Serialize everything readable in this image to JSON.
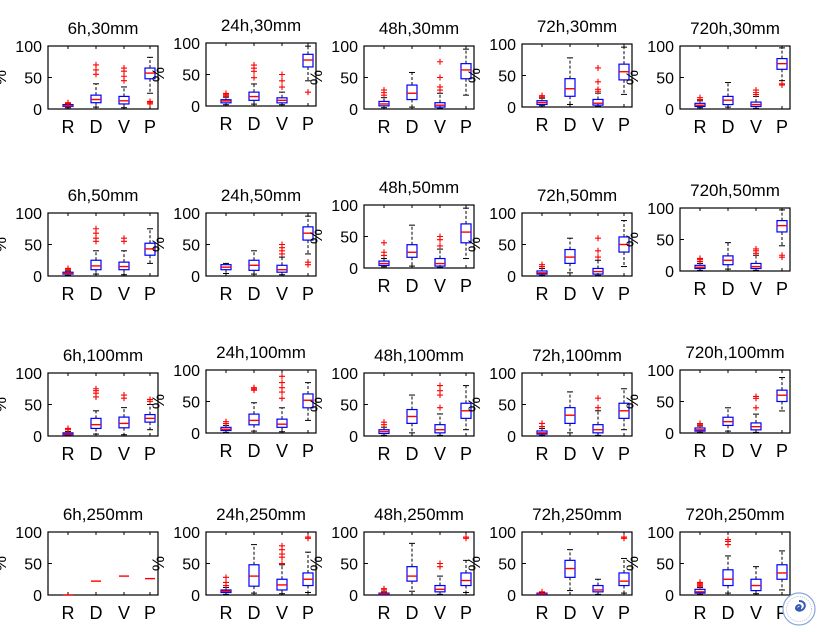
{
  "figure": {
    "rows": 4,
    "cols": 5,
    "ylabel": "%",
    "yticks": [
      "0",
      "50",
      "100"
    ],
    "xlabel_letters": [
      "R",
      "D",
      "V",
      "P"
    ],
    "colors": {
      "box": "#0000ff",
      "median": "#ff0000",
      "outlier": "#ff0000",
      "whisker": "#000000",
      "axis": "#000000"
    }
  },
  "chart_data": [
    {
      "title": "6h,30mm",
      "type": "box",
      "ylim": [
        0,
        100
      ],
      "categories": [
        "R",
        "D",
        "V",
        "P"
      ],
      "boxes": [
        {
          "q1": 4,
          "median": 5,
          "q3": 7,
          "wlo": 2,
          "whi": 8,
          "outliers": [
            9,
            10
          ]
        },
        {
          "q1": 10,
          "median": 15,
          "q3": 22,
          "wlo": 3,
          "whi": 40,
          "outliers": [
            55,
            62,
            70
          ]
        },
        {
          "q1": 8,
          "median": 13,
          "q3": 20,
          "wlo": 2,
          "whi": 35,
          "outliers": [
            45,
            52,
            60,
            65
          ]
        },
        {
          "q1": 48,
          "median": 57,
          "q3": 65,
          "wlo": 25,
          "whi": 82,
          "outliers": [
            8,
            10,
            12
          ]
        }
      ]
    },
    {
      "title": "24h,30mm",
      "type": "box",
      "ylim": [
        0,
        100
      ],
      "categories": [
        "R",
        "D",
        "V",
        "P"
      ],
      "boxes": [
        {
          "q1": 5,
          "median": 8,
          "q3": 10,
          "wlo": 2,
          "whi": 14,
          "outliers": [
            16,
            18,
            20
          ]
        },
        {
          "q1": 9,
          "median": 15,
          "q3": 22,
          "wlo": 3,
          "whi": 35,
          "outliers": [
            45,
            55,
            60,
            65
          ]
        },
        {
          "q1": 5,
          "median": 9,
          "q3": 13,
          "wlo": 2,
          "whi": 22,
          "outliers": [
            30,
            40,
            50
          ]
        },
        {
          "q1": 62,
          "median": 73,
          "q3": 82,
          "wlo": 40,
          "whi": 95,
          "outliers": [
            22
          ]
        }
      ]
    },
    {
      "title": "48h,30mm",
      "type": "box",
      "ylim": [
        0,
        100
      ],
      "categories": [
        "R",
        "D",
        "V",
        "P"
      ],
      "boxes": [
        {
          "q1": 5,
          "median": 8,
          "q3": 12,
          "wlo": 2,
          "whi": 18,
          "outliers": [
            22,
            26,
            30
          ]
        },
        {
          "q1": 15,
          "median": 25,
          "q3": 38,
          "wlo": 3,
          "whi": 58,
          "outliers": []
        },
        {
          "q1": 3,
          "median": 6,
          "q3": 10,
          "wlo": 1,
          "whi": 25,
          "outliers": [
            30,
            35,
            50,
            75
          ]
        },
        {
          "q1": 48,
          "median": 62,
          "q3": 72,
          "wlo": 22,
          "whi": 95,
          "outliers": []
        }
      ]
    },
    {
      "title": "72h,30mm",
      "type": "box",
      "ylim": [
        0,
        100
      ],
      "categories": [
        "R",
        "D",
        "V",
        "P"
      ],
      "boxes": [
        {
          "q1": 4,
          "median": 7,
          "q3": 10,
          "wlo": 2,
          "whi": 14,
          "outliers": [
            16,
            18
          ]
        },
        {
          "q1": 17,
          "median": 29,
          "q3": 45,
          "wlo": 4,
          "whi": 78,
          "outliers": []
        },
        {
          "q1": 3,
          "median": 6,
          "q3": 12,
          "wlo": 1,
          "whi": 22,
          "outliers": [
            25,
            28,
            40,
            62
          ]
        },
        {
          "q1": 43,
          "median": 56,
          "q3": 68,
          "wlo": 20,
          "whi": 95,
          "outliers": []
        }
      ]
    },
    {
      "title": "720h,30mm",
      "type": "box",
      "ylim": [
        0,
        100
      ],
      "categories": [
        "R",
        "D",
        "V",
        "P"
      ],
      "boxes": [
        {
          "q1": 4,
          "median": 6,
          "q3": 9,
          "wlo": 2,
          "whi": 13,
          "outliers": [
            15,
            18
          ]
        },
        {
          "q1": 7,
          "median": 14,
          "q3": 20,
          "wlo": 3,
          "whi": 42,
          "outliers": []
        },
        {
          "q1": 4,
          "median": 7,
          "q3": 11,
          "wlo": 1,
          "whi": 20,
          "outliers": [
            23,
            26,
            30
          ]
        },
        {
          "q1": 63,
          "median": 72,
          "q3": 80,
          "wlo": 45,
          "whi": 97,
          "outliers": [
            40,
            38
          ]
        }
      ]
    },
    {
      "title": "6h,50mm",
      "type": "box",
      "ylim": [
        0,
        100
      ],
      "categories": [
        "R",
        "D",
        "V",
        "P"
      ],
      "boxes": [
        {
          "q1": 3,
          "median": 4,
          "q3": 6,
          "wlo": 1,
          "whi": 8,
          "outliers": [
            10,
            12
          ]
        },
        {
          "q1": 10,
          "median": 16,
          "q3": 25,
          "wlo": 3,
          "whi": 40,
          "outliers": [
            55,
            60,
            68,
            75
          ]
        },
        {
          "q1": 10,
          "median": 15,
          "q3": 22,
          "wlo": 2,
          "whi": 40,
          "outliers": [
            55,
            60
          ]
        },
        {
          "q1": 33,
          "median": 43,
          "q3": 52,
          "wlo": 20,
          "whi": 75,
          "outliers": []
        }
      ]
    },
    {
      "title": "24h,50mm",
      "type": "box",
      "ylim": [
        0,
        100
      ],
      "categories": [
        "R",
        "D",
        "V",
        "P"
      ],
      "boxes": [
        {
          "q1": 10,
          "median": 14,
          "q3": 18,
          "wlo": 4,
          "whi": 20,
          "outliers": []
        },
        {
          "q1": 9,
          "median": 17,
          "q3": 25,
          "wlo": 3,
          "whi": 40,
          "outliers": []
        },
        {
          "q1": 6,
          "median": 10,
          "q3": 17,
          "wlo": 2,
          "whi": 30,
          "outliers": [
            35,
            40,
            45,
            50
          ]
        },
        {
          "q1": 57,
          "median": 68,
          "q3": 78,
          "wlo": 35,
          "whi": 95,
          "outliers": [
            22,
            18
          ]
        }
      ]
    },
    {
      "title": "48h,50mm",
      "type": "box",
      "ylim": [
        0,
        100
      ],
      "categories": [
        "R",
        "D",
        "V",
        "P"
      ],
      "boxes": [
        {
          "q1": 4,
          "median": 7,
          "q3": 11,
          "wlo": 2,
          "whi": 15,
          "outliers": [
            20,
            25,
            40
          ]
        },
        {
          "q1": 17,
          "median": 25,
          "q3": 37,
          "wlo": 3,
          "whi": 68,
          "outliers": []
        },
        {
          "q1": 3,
          "median": 7,
          "q3": 15,
          "wlo": 1,
          "whi": 30,
          "outliers": [
            35,
            45,
            50
          ]
        },
        {
          "q1": 40,
          "median": 57,
          "q3": 70,
          "wlo": 15,
          "whi": 95,
          "outliers": []
        }
      ]
    },
    {
      "title": "72h,50mm",
      "type": "box",
      "ylim": [
        0,
        100
      ],
      "categories": [
        "R",
        "D",
        "V",
        "P"
      ],
      "boxes": [
        {
          "q1": 3,
          "median": 5,
          "q3": 8,
          "wlo": 1,
          "whi": 12,
          "outliers": [
            15,
            18
          ]
        },
        {
          "q1": 20,
          "median": 30,
          "q3": 42,
          "wlo": 5,
          "whi": 60,
          "outliers": []
        },
        {
          "q1": 3,
          "median": 7,
          "q3": 12,
          "wlo": 1,
          "whi": 25,
          "outliers": [
            30,
            40,
            60
          ]
        },
        {
          "q1": 38,
          "median": 50,
          "q3": 62,
          "wlo": 15,
          "whi": 88,
          "outliers": []
        }
      ]
    },
    {
      "title": "720h,50mm",
      "type": "box",
      "ylim": [
        0,
        100
      ],
      "categories": [
        "R",
        "D",
        "V",
        "P"
      ],
      "boxes": [
        {
          "q1": 4,
          "median": 6,
          "q3": 9,
          "wlo": 1,
          "whi": 12,
          "outliers": [
            15,
            18,
            20
          ]
        },
        {
          "q1": 10,
          "median": 17,
          "q3": 24,
          "wlo": 3,
          "whi": 45,
          "outliers": []
        },
        {
          "q1": 4,
          "median": 7,
          "q3": 12,
          "wlo": 1,
          "whi": 25,
          "outliers": [
            28,
            32,
            35
          ]
        },
        {
          "q1": 62,
          "median": 72,
          "q3": 80,
          "wlo": 40,
          "whi": 97,
          "outliers": [
            25,
            22
          ]
        }
      ]
    },
    {
      "title": "6h,100mm",
      "type": "box",
      "ylim": [
        0,
        100
      ],
      "categories": [
        "R",
        "D",
        "V",
        "P"
      ],
      "boxes": [
        {
          "q1": 2,
          "median": 3,
          "q3": 5,
          "wlo": 1,
          "whi": 7,
          "outliers": [
            10,
            12
          ]
        },
        {
          "q1": 12,
          "median": 18,
          "q3": 28,
          "wlo": 3,
          "whi": 40,
          "outliers": [
            62,
            68,
            72,
            75
          ]
        },
        {
          "q1": 13,
          "median": 20,
          "q3": 30,
          "wlo": 2,
          "whi": 45,
          "outliers": [
            60,
            65
          ]
        },
        {
          "q1": 22,
          "median": 28,
          "q3": 34,
          "wlo": 10,
          "whi": 50,
          "outliers": [
            55,
            58
          ]
        }
      ]
    },
    {
      "title": "24h,100mm",
      "type": "box",
      "ylim": [
        0,
        100
      ],
      "categories": [
        "R",
        "D",
        "V",
        "P"
      ],
      "boxes": [
        {
          "q1": 4,
          "median": 6,
          "q3": 9,
          "wlo": 1,
          "whi": 12,
          "outliers": [
            15,
            18
          ]
        },
        {
          "q1": 13,
          "median": 20,
          "q3": 30,
          "wlo": 3,
          "whi": 48,
          "outliers": [
            68,
            70,
            72
          ]
        },
        {
          "q1": 9,
          "median": 14,
          "q3": 22,
          "wlo": 2,
          "whi": 40,
          "outliers": [
            55,
            65,
            72,
            80,
            90
          ]
        },
        {
          "q1": 40,
          "median": 52,
          "q3": 62,
          "wlo": 20,
          "whi": 80,
          "outliers": []
        }
      ]
    },
    {
      "title": "48h,100mm",
      "type": "box",
      "ylim": [
        0,
        100
      ],
      "categories": [
        "R",
        "D",
        "V",
        "P"
      ],
      "boxes": [
        {
          "q1": 4,
          "median": 7,
          "q3": 10,
          "wlo": 1,
          "whi": 14,
          "outliers": [
            18,
            22
          ]
        },
        {
          "q1": 20,
          "median": 31,
          "q3": 42,
          "wlo": 5,
          "whi": 65,
          "outliers": []
        },
        {
          "q1": 5,
          "median": 10,
          "q3": 18,
          "wlo": 1,
          "whi": 35,
          "outliers": [
            45,
            65,
            72,
            80
          ]
        },
        {
          "q1": 28,
          "median": 40,
          "q3": 52,
          "wlo": 10,
          "whi": 80,
          "outliers": []
        }
      ]
    },
    {
      "title": "72h,100mm",
      "type": "box",
      "ylim": [
        0,
        100
      ],
      "categories": [
        "R",
        "D",
        "V",
        "P"
      ],
      "boxes": [
        {
          "q1": 3,
          "median": 5,
          "q3": 8,
          "wlo": 1,
          "whi": 12,
          "outliers": [
            15,
            20
          ]
        },
        {
          "q1": 20,
          "median": 33,
          "q3": 45,
          "wlo": 5,
          "whi": 70,
          "outliers": []
        },
        {
          "q1": 5,
          "median": 10,
          "q3": 18,
          "wlo": 1,
          "whi": 40,
          "outliers": [
            45,
            60
          ]
        },
        {
          "q1": 28,
          "median": 40,
          "q3": 52,
          "wlo": 10,
          "whi": 75,
          "outliers": []
        }
      ]
    },
    {
      "title": "720h,100mm",
      "type": "box",
      "ylim": [
        0,
        100
      ],
      "categories": [
        "R",
        "D",
        "V",
        "P"
      ],
      "boxes": [
        {
          "q1": 3,
          "median": 5,
          "q3": 8,
          "wlo": 1,
          "whi": 11,
          "outliers": [
            13,
            15
          ]
        },
        {
          "q1": 12,
          "median": 18,
          "q3": 25,
          "wlo": 3,
          "whi": 40,
          "outliers": []
        },
        {
          "q1": 5,
          "median": 10,
          "q3": 16,
          "wlo": 1,
          "whi": 30,
          "outliers": [
            40,
            55,
            58
          ]
        },
        {
          "q1": 50,
          "median": 60,
          "q3": 68,
          "wlo": 35,
          "whi": 88,
          "outliers": []
        }
      ]
    },
    {
      "title": "6h,250mm",
      "type": "box",
      "ylim": [
        0,
        100
      ],
      "categories": [
        "R",
        "D",
        "V",
        "P"
      ],
      "boxes": [
        {
          "q1": 0,
          "median": 0,
          "q3": 0,
          "wlo": 0,
          "whi": 0,
          "outliers": []
        },
        {
          "q1": 22,
          "median": 22,
          "q3": 22,
          "wlo": 22,
          "whi": 22,
          "outliers": []
        },
        {
          "q1": 30,
          "median": 30,
          "q3": 30,
          "wlo": 30,
          "whi": 30,
          "outliers": []
        },
        {
          "q1": 26,
          "median": 26,
          "q3": 26,
          "wlo": 26,
          "whi": 26,
          "outliers": []
        }
      ]
    },
    {
      "title": "24h,250mm",
      "type": "box",
      "ylim": [
        0,
        100
      ],
      "categories": [
        "R",
        "D",
        "V",
        "P"
      ],
      "boxes": [
        {
          "q1": 4,
          "median": 6,
          "q3": 8,
          "wlo": 1,
          "whi": 12,
          "outliers": [
            15,
            20,
            28
          ]
        },
        {
          "q1": 14,
          "median": 30,
          "q3": 48,
          "wlo": 3,
          "whi": 80,
          "outliers": []
        },
        {
          "q1": 8,
          "median": 16,
          "q3": 25,
          "wlo": 2,
          "whi": 48,
          "outliers": [
            50,
            60,
            65,
            72,
            78
          ]
        },
        {
          "q1": 15,
          "median": 25,
          "q3": 35,
          "wlo": 4,
          "whi": 68,
          "outliers": [
            90,
            92
          ]
        }
      ]
    },
    {
      "title": "48h,250mm",
      "type": "box",
      "ylim": [
        0,
        100
      ],
      "categories": [
        "R",
        "D",
        "V",
        "P"
      ],
      "boxes": [
        {
          "q1": 1,
          "median": 2,
          "q3": 3,
          "wlo": 0,
          "whi": 5,
          "outliers": [
            8,
            10
          ]
        },
        {
          "q1": 22,
          "median": 30,
          "q3": 45,
          "wlo": 6,
          "whi": 82,
          "outliers": []
        },
        {
          "q1": 5,
          "median": 9,
          "q3": 15,
          "wlo": 1,
          "whi": 30,
          "outliers": [
            45,
            50
          ]
        },
        {
          "q1": 15,
          "median": 23,
          "q3": 35,
          "wlo": 4,
          "whi": 55,
          "outliers": [
            90,
            92
          ]
        }
      ]
    },
    {
      "title": "72h,250mm",
      "type": "box",
      "ylim": [
        0,
        100
      ],
      "categories": [
        "R",
        "D",
        "V",
        "P"
      ],
      "boxes": [
        {
          "q1": 1,
          "median": 2,
          "q3": 3,
          "wlo": 0,
          "whi": 4,
          "outliers": [
            5
          ]
        },
        {
          "q1": 28,
          "median": 42,
          "q3": 55,
          "wlo": 7,
          "whi": 72,
          "outliers": []
        },
        {
          "q1": 5,
          "median": 8,
          "q3": 15,
          "wlo": 1,
          "whi": 25,
          "outliers": []
        },
        {
          "q1": 15,
          "median": 22,
          "q3": 35,
          "wlo": 3,
          "whi": 58,
          "outliers": [
            90,
            92
          ]
        }
      ]
    },
    {
      "title": "720h,250mm",
      "type": "box",
      "ylim": [
        0,
        100
      ],
      "categories": [
        "R",
        "D",
        "V",
        "P"
      ],
      "boxes": [
        {
          "q1": 3,
          "median": 5,
          "q3": 9,
          "wlo": 1,
          "whi": 12,
          "outliers": [
            14,
            16,
            18,
            20
          ]
        },
        {
          "q1": 15,
          "median": 25,
          "q3": 40,
          "wlo": 3,
          "whi": 62,
          "outliers": [
            80,
            85,
            88
          ]
        },
        {
          "q1": 7,
          "median": 15,
          "q3": 25,
          "wlo": 2,
          "whi": 45,
          "outliers": []
        },
        {
          "q1": 25,
          "median": 35,
          "q3": 48,
          "wlo": 8,
          "whi": 70,
          "outliers": []
        }
      ]
    }
  ]
}
